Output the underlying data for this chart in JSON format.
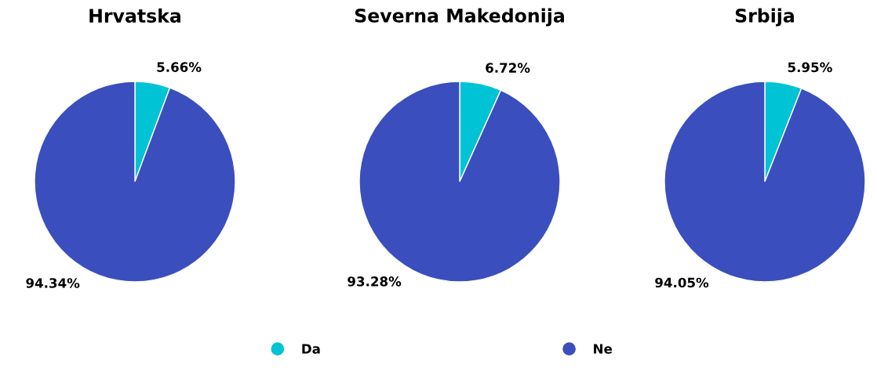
{
  "chart_data": [
    {
      "type": "pie",
      "title": "Hrvatska",
      "categories": [
        "Da",
        "Ne"
      ],
      "values": [
        5.66,
        94.34
      ],
      "value_labels": [
        "5.66%",
        "94.34%"
      ],
      "colors": [
        "#00c3d6",
        "#3a4fbd"
      ],
      "legend": "bottom"
    },
    {
      "type": "pie",
      "title": "Severna Makedonija",
      "values": [
        6.72,
        93.28
      ],
      "value_labels": [
        "6.72%",
        "93.28%"
      ],
      "colors": [
        "#00c3d6",
        "#3a4fbd"
      ]
    },
    {
      "type": "pie",
      "title": "Srbija",
      "values": [
        5.95,
        94.05
      ],
      "value_labels": [
        "5.95%",
        "94.05%"
      ],
      "colors": [
        "#00c3d6",
        "#3a4fbd"
      ]
    }
  ]
}
